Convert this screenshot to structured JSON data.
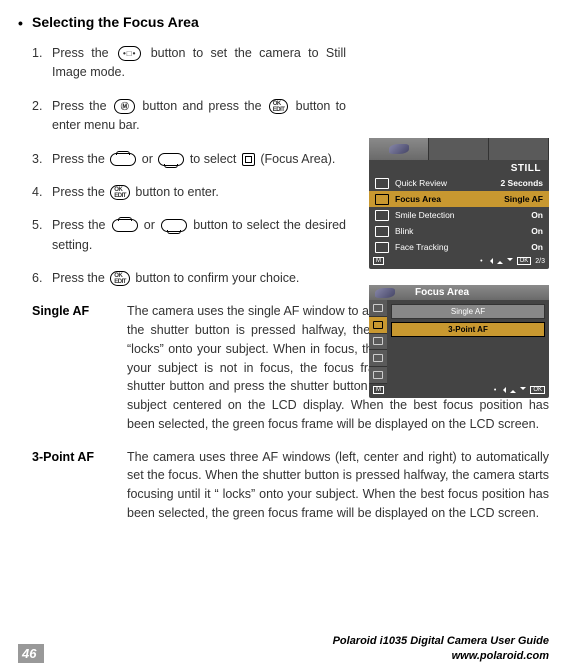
{
  "heading": "Selecting the Focus Area",
  "steps": [
    {
      "num": "1.",
      "pre": "Press the ",
      "icon": "dots",
      "post": " button to set the camera to Still Image mode."
    },
    {
      "num": "2.",
      "pre": "Press the ",
      "icon": "m",
      "mid": " button and press the ",
      "icon2": "ok",
      "post": " button to enter menu bar."
    },
    {
      "num": "3.",
      "pre": "Press the ",
      "icon": "up",
      "mid": " or ",
      "icon2": "down",
      "mid2": " to select ",
      "icon3": "sq",
      "post": " (Focus Area)."
    },
    {
      "num": "4.",
      "pre": "Press the ",
      "icon": "ok",
      "post": " button to enter."
    },
    {
      "num": "5.",
      "pre": "Press the ",
      "icon": "up",
      "mid": " or ",
      "icon2": "down",
      "post": " button to select the desired setting."
    },
    {
      "num": "6.",
      "pre": "Press the ",
      "icon": "ok",
      "post": " button to confirm your choice."
    }
  ],
  "lcd1": {
    "title": "STILL",
    "rows": [
      {
        "label": "Quick Review",
        "val": "2 Seconds",
        "hl": false
      },
      {
        "label": "Focus Area",
        "val": "Single AF",
        "hl": true
      },
      {
        "label": "Smile Detection",
        "val": "On",
        "hl": false
      },
      {
        "label": "Blink",
        "val": "On",
        "hl": false
      },
      {
        "label": "Face Tracking",
        "val": "On",
        "hl": false
      }
    ],
    "page": "2/3"
  },
  "lcd2": {
    "title": "Focus Area",
    "opts": [
      "Single AF",
      "3-Point AF"
    ],
    "selected": 1
  },
  "defs": [
    {
      "term": "Single AF",
      "body": "The camera uses the single AF window to automatically set the focus. When the shutter button is pressed halfway, the camera starts focusing until it “locks” onto your subject. When in focus, the focus frame will turn green. If your subject is not in focus, the focus frame will turn red. Release the shutter button and press the shutter button halfway down again. Keep your subject centered on the LCD display. When the best focus position has been selected, the green focus frame will be displayed on the LCD screen."
    },
    {
      "term": "3-Point AF",
      "body": "The camera uses three AF windows (left, center and right) to automatically set the focus. When the shutter button is pressed halfway, the camera starts focusing until it “ locks” onto your subject. When the best focus position has been selected, the green focus frame will be displayed on the LCD screen."
    }
  ],
  "footer": {
    "page": "46",
    "line1": "Polaroid i1035 Digital Camera User Guide",
    "line2": "www.polaroid.com"
  }
}
